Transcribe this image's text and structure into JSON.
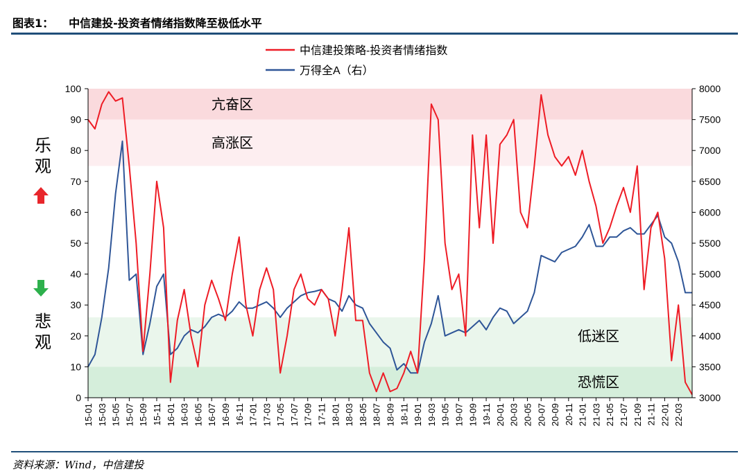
{
  "header": {
    "figure_label": "图表1：",
    "figure_title": "中信建投-投资者情绪指数降至极低水平"
  },
  "footer": {
    "source": "资料来源：Wind，中信建投"
  },
  "colors": {
    "sentiment_line": "#ee1c25",
    "index_line": "#2e5597",
    "overheat_zone": "#fadadd",
    "high_zone": "#fdeef0",
    "low_zone": "#eaf6ec",
    "panic_zone": "#d5eedb",
    "up_arrow": "#e8262b",
    "down_arrow": "#2db04c",
    "rule": "#1f4e79"
  },
  "side_labels": {
    "optimistic": [
      "乐",
      "观"
    ],
    "pessimistic": [
      "悲",
      "观"
    ],
    "up_icon": "up-arrow-icon",
    "down_icon": "down-arrow-icon"
  },
  "chart_data": {
    "type": "line",
    "title": "",
    "legend_position": "top-center",
    "grid": false,
    "x_tick_labels": [
      "15-01",
      "15-03",
      "15-05",
      "15-07",
      "15-09",
      "15-11",
      "16-01",
      "16-03",
      "16-05",
      "16-07",
      "16-09",
      "16-11",
      "17-01",
      "17-03",
      "17-05",
      "17-07",
      "17-09",
      "17-11",
      "18-01",
      "18-03",
      "18-05",
      "18-07",
      "18-09",
      "18-11",
      "19-01",
      "19-03",
      "19-05",
      "19-07",
      "19-09",
      "19-11",
      "20-01",
      "20-03",
      "20-05",
      "20-07",
      "20-09",
      "20-11",
      "21-01",
      "21-03",
      "21-05",
      "21-07",
      "21-09",
      "21-11",
      "22-01",
      "22-03"
    ],
    "y_left": {
      "min": 0,
      "max": 100,
      "ticks": [
        0,
        10,
        20,
        30,
        40,
        50,
        60,
        70,
        80,
        90,
        100
      ]
    },
    "y_right": {
      "min": 3000,
      "max": 8000,
      "ticks": [
        3000,
        3500,
        4000,
        4500,
        5000,
        5500,
        6000,
        6500,
        7000,
        7500,
        8000
      ]
    },
    "zones": [
      {
        "label": "亢奋区",
        "from": 90,
        "to": 100
      },
      {
        "label": "高涨区",
        "from": 75,
        "to": 90
      },
      {
        "label": "低迷区",
        "from": 10,
        "to": 26
      },
      {
        "label": "恐慌区",
        "from": 0,
        "to": 10
      }
    ],
    "series": [
      {
        "name": "中信建投策略-投资者情绪指数",
        "axis": "left",
        "points": [
          [
            "15-01",
            90
          ],
          [
            "15-02",
            87
          ],
          [
            "15-03",
            95
          ],
          [
            "15-04",
            99
          ],
          [
            "15-05",
            96
          ],
          [
            "15-06",
            97
          ],
          [
            "15-07",
            75
          ],
          [
            "15-08",
            50
          ],
          [
            "15-09",
            15
          ],
          [
            "15-10",
            40
          ],
          [
            "15-11",
            70
          ],
          [
            "15-12",
            55
          ],
          [
            "16-01",
            5
          ],
          [
            "16-02",
            25
          ],
          [
            "16-03",
            35
          ],
          [
            "16-04",
            20
          ],
          [
            "16-05",
            10
          ],
          [
            "16-06",
            30
          ],
          [
            "16-07",
            38
          ],
          [
            "16-08",
            32
          ],
          [
            "16-09",
            25
          ],
          [
            "16-10",
            40
          ],
          [
            "16-11",
            52
          ],
          [
            "16-12",
            30
          ],
          [
            "17-01",
            20
          ],
          [
            "17-02",
            35
          ],
          [
            "17-03",
            42
          ],
          [
            "17-04",
            35
          ],
          [
            "17-05",
            8
          ],
          [
            "17-06",
            20
          ],
          [
            "17-07",
            35
          ],
          [
            "17-08",
            40
          ],
          [
            "17-09",
            32
          ],
          [
            "17-10",
            30
          ],
          [
            "17-11",
            35
          ],
          [
            "17-12",
            32
          ],
          [
            "18-01",
            20
          ],
          [
            "18-02",
            35
          ],
          [
            "18-03",
            55
          ],
          [
            "18-04",
            25
          ],
          [
            "18-05",
            25
          ],
          [
            "18-06",
            8
          ],
          [
            "18-07",
            2
          ],
          [
            "18-08",
            8
          ],
          [
            "18-09",
            2
          ],
          [
            "18-10",
            3
          ],
          [
            "18-11",
            8
          ],
          [
            "18-12",
            15
          ],
          [
            "19-01",
            8
          ],
          [
            "19-02",
            45
          ],
          [
            "19-03",
            95
          ],
          [
            "19-04",
            90
          ],
          [
            "19-05",
            50
          ],
          [
            "19-06",
            35
          ],
          [
            "19-07",
            40
          ],
          [
            "19-08",
            20
          ],
          [
            "19-09",
            85
          ],
          [
            "19-10",
            55
          ],
          [
            "19-11",
            85
          ],
          [
            "19-12",
            50
          ],
          [
            "20-01",
            82
          ],
          [
            "20-02",
            85
          ],
          [
            "20-03",
            90
          ],
          [
            "20-04",
            60
          ],
          [
            "20-05",
            55
          ],
          [
            "20-06",
            75
          ],
          [
            "20-07",
            98
          ],
          [
            "20-08",
            85
          ],
          [
            "20-09",
            78
          ],
          [
            "20-10",
            75
          ],
          [
            "20-11",
            78
          ],
          [
            "20-12",
            72
          ],
          [
            "21-01",
            80
          ],
          [
            "21-02",
            70
          ],
          [
            "21-03",
            62
          ],
          [
            "21-04",
            50
          ],
          [
            "21-05",
            55
          ],
          [
            "21-06",
            62
          ],
          [
            "21-07",
            68
          ],
          [
            "21-08",
            60
          ],
          [
            "21-09",
            75
          ],
          [
            "21-10",
            35
          ],
          [
            "21-11",
            55
          ],
          [
            "21-12",
            60
          ],
          [
            "22-01",
            45
          ],
          [
            "22-02",
            12
          ],
          [
            "22-03",
            30
          ],
          [
            "22-04",
            5
          ],
          [
            "22-05",
            1
          ]
        ]
      },
      {
        "name": "万得全A（右）",
        "axis": "right",
        "points": [
          [
            "15-01",
            3500
          ],
          [
            "15-02",
            3700
          ],
          [
            "15-03",
            4300
          ],
          [
            "15-04",
            5100
          ],
          [
            "15-05",
            6300
          ],
          [
            "15-06",
            7150
          ],
          [
            "15-07",
            4900
          ],
          [
            "15-08",
            5000
          ],
          [
            "15-09",
            3700
          ],
          [
            "15-10",
            4200
          ],
          [
            "15-11",
            4800
          ],
          [
            "15-12",
            5000
          ],
          [
            "16-01",
            3700
          ],
          [
            "16-02",
            3800
          ],
          [
            "16-03",
            4000
          ],
          [
            "16-04",
            4100
          ],
          [
            "16-05",
            4050
          ],
          [
            "16-06",
            4150
          ],
          [
            "16-07",
            4300
          ],
          [
            "16-08",
            4350
          ],
          [
            "16-09",
            4300
          ],
          [
            "16-10",
            4400
          ],
          [
            "16-11",
            4550
          ],
          [
            "16-12",
            4450
          ],
          [
            "17-01",
            4450
          ],
          [
            "17-02",
            4500
          ],
          [
            "17-03",
            4550
          ],
          [
            "17-04",
            4450
          ],
          [
            "17-05",
            4300
          ],
          [
            "17-06",
            4450
          ],
          [
            "17-07",
            4550
          ],
          [
            "17-08",
            4650
          ],
          [
            "17-09",
            4700
          ],
          [
            "17-10",
            4720
          ],
          [
            "17-11",
            4750
          ],
          [
            "17-12",
            4600
          ],
          [
            "18-01",
            4550
          ],
          [
            "18-02",
            4400
          ],
          [
            "18-03",
            4650
          ],
          [
            "18-04",
            4500
          ],
          [
            "18-05",
            4450
          ],
          [
            "18-06",
            4200
          ],
          [
            "18-07",
            4050
          ],
          [
            "18-08",
            3900
          ],
          [
            "18-09",
            3800
          ],
          [
            "18-10",
            3450
          ],
          [
            "18-11",
            3550
          ],
          [
            "18-12",
            3400
          ],
          [
            "19-01",
            3400
          ],
          [
            "19-02",
            3900
          ],
          [
            "19-03",
            4200
          ],
          [
            "19-04",
            4650
          ],
          [
            "19-05",
            4000
          ],
          [
            "19-06",
            4050
          ],
          [
            "19-07",
            4100
          ],
          [
            "19-08",
            4050
          ],
          [
            "19-09",
            4150
          ],
          [
            "19-10",
            4250
          ],
          [
            "19-11",
            4100
          ],
          [
            "19-12",
            4300
          ],
          [
            "20-01",
            4450
          ],
          [
            "20-02",
            4400
          ],
          [
            "20-03",
            4200
          ],
          [
            "20-04",
            4300
          ],
          [
            "20-05",
            4400
          ],
          [
            "20-06",
            4700
          ],
          [
            "20-07",
            5300
          ],
          [
            "20-08",
            5250
          ],
          [
            "20-09",
            5200
          ],
          [
            "20-10",
            5350
          ],
          [
            "20-11",
            5400
          ],
          [
            "20-12",
            5450
          ],
          [
            "21-01",
            5600
          ],
          [
            "21-02",
            5800
          ],
          [
            "21-03",
            5450
          ],
          [
            "21-04",
            5450
          ],
          [
            "21-05",
            5600
          ],
          [
            "21-06",
            5600
          ],
          [
            "21-07",
            5700
          ],
          [
            "21-08",
            5750
          ],
          [
            "21-09",
            5650
          ],
          [
            "21-10",
            5650
          ],
          [
            "21-11",
            5800
          ],
          [
            "21-12",
            5950
          ],
          [
            "22-01",
            5600
          ],
          [
            "22-02",
            5500
          ],
          [
            "22-03",
            5200
          ],
          [
            "22-04",
            4700
          ],
          [
            "22-05",
            4700
          ]
        ]
      }
    ]
  }
}
